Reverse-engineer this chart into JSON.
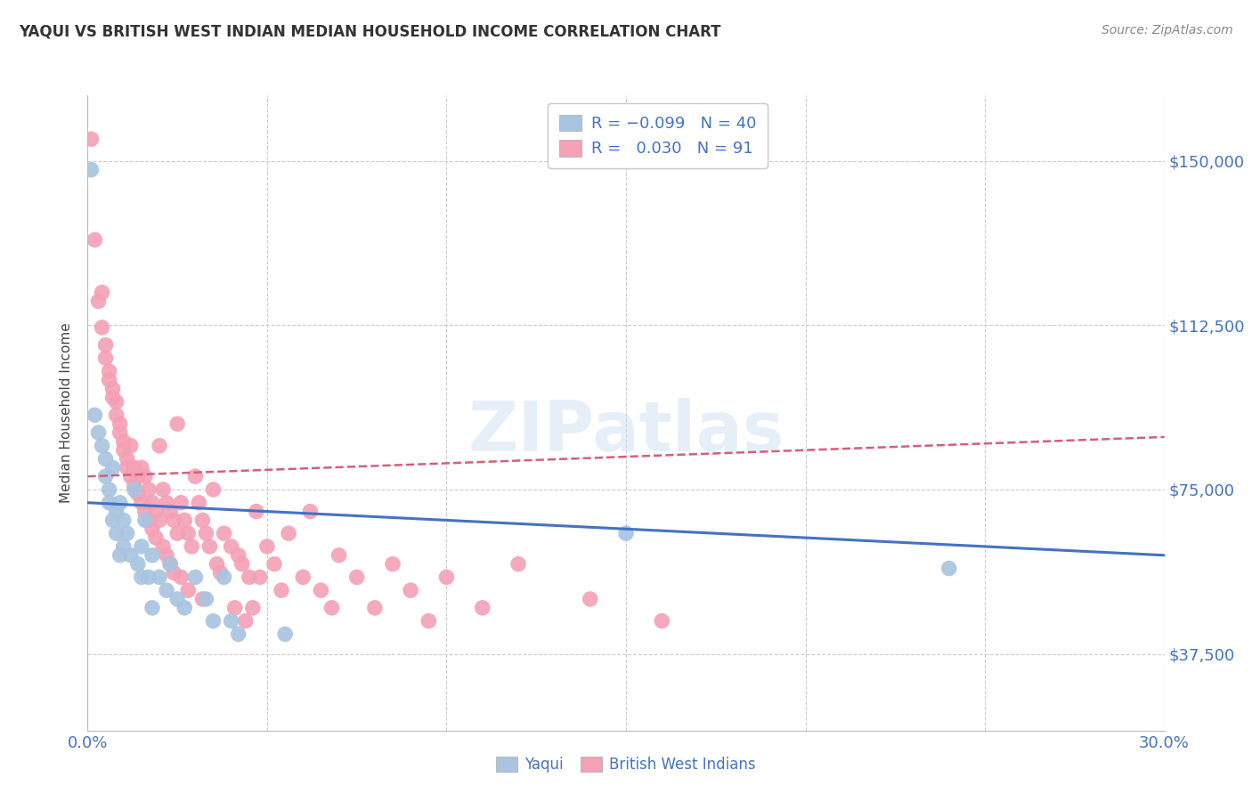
{
  "title": "YAQUI VS BRITISH WEST INDIAN MEDIAN HOUSEHOLD INCOME CORRELATION CHART",
  "source": "Source: ZipAtlas.com",
  "ylabel": "Median Household Income",
  "y_ticks": [
    37500,
    75000,
    112500,
    150000
  ],
  "y_tick_labels": [
    "$37,500",
    "$75,000",
    "$112,500",
    "$150,000"
  ],
  "y_min": 20000,
  "y_max": 165000,
  "x_min": 0.0,
  "x_max": 0.3,
  "watermark": "ZIPatlas",
  "blue_color": "#a8c4e0",
  "pink_color": "#f4a0b5",
  "blue_line_color": "#4472c4",
  "pink_line_color": "#d45f7a",
  "blue_scatter": [
    [
      0.001,
      148000
    ],
    [
      0.002,
      92000
    ],
    [
      0.003,
      88000
    ],
    [
      0.004,
      85000
    ],
    [
      0.005,
      82000
    ],
    [
      0.005,
      78000
    ],
    [
      0.006,
      75000
    ],
    [
      0.006,
      72000
    ],
    [
      0.007,
      80000
    ],
    [
      0.007,
      68000
    ],
    [
      0.008,
      70000
    ],
    [
      0.008,
      65000
    ],
    [
      0.009,
      72000
    ],
    [
      0.009,
      60000
    ],
    [
      0.01,
      68000
    ],
    [
      0.01,
      62000
    ],
    [
      0.011,
      65000
    ],
    [
      0.012,
      60000
    ],
    [
      0.013,
      75000
    ],
    [
      0.014,
      58000
    ],
    [
      0.015,
      62000
    ],
    [
      0.015,
      55000
    ],
    [
      0.016,
      68000
    ],
    [
      0.017,
      55000
    ],
    [
      0.018,
      60000
    ],
    [
      0.018,
      48000
    ],
    [
      0.02,
      55000
    ],
    [
      0.022,
      52000
    ],
    [
      0.023,
      58000
    ],
    [
      0.025,
      50000
    ],
    [
      0.027,
      48000
    ],
    [
      0.03,
      55000
    ],
    [
      0.033,
      50000
    ],
    [
      0.035,
      45000
    ],
    [
      0.038,
      55000
    ],
    [
      0.04,
      45000
    ],
    [
      0.042,
      42000
    ],
    [
      0.055,
      42000
    ],
    [
      0.15,
      65000
    ],
    [
      0.24,
      57000
    ]
  ],
  "pink_scatter": [
    [
      0.001,
      155000
    ],
    [
      0.002,
      132000
    ],
    [
      0.003,
      118000
    ],
    [
      0.004,
      120000
    ],
    [
      0.004,
      112000
    ],
    [
      0.005,
      108000
    ],
    [
      0.005,
      105000
    ],
    [
      0.006,
      102000
    ],
    [
      0.006,
      100000
    ],
    [
      0.007,
      98000
    ],
    [
      0.007,
      96000
    ],
    [
      0.008,
      95000
    ],
    [
      0.008,
      92000
    ],
    [
      0.009,
      90000
    ],
    [
      0.009,
      88000
    ],
    [
      0.01,
      86000
    ],
    [
      0.01,
      84000
    ],
    [
      0.011,
      82000
    ],
    [
      0.011,
      80000
    ],
    [
      0.012,
      85000
    ],
    [
      0.012,
      78000
    ],
    [
      0.013,
      80000
    ],
    [
      0.013,
      76000
    ],
    [
      0.014,
      78000
    ],
    [
      0.014,
      74000
    ],
    [
      0.015,
      80000
    ],
    [
      0.015,
      72000
    ],
    [
      0.016,
      78000
    ],
    [
      0.016,
      70000
    ],
    [
      0.017,
      75000
    ],
    [
      0.017,
      68000
    ],
    [
      0.018,
      72000
    ],
    [
      0.018,
      66000
    ],
    [
      0.019,
      70000
    ],
    [
      0.019,
      64000
    ],
    [
      0.02,
      85000
    ],
    [
      0.02,
      68000
    ],
    [
      0.021,
      75000
    ],
    [
      0.021,
      62000
    ],
    [
      0.022,
      72000
    ],
    [
      0.022,
      60000
    ],
    [
      0.023,
      70000
    ],
    [
      0.023,
      58000
    ],
    [
      0.024,
      68000
    ],
    [
      0.024,
      56000
    ],
    [
      0.025,
      90000
    ],
    [
      0.025,
      65000
    ],
    [
      0.026,
      72000
    ],
    [
      0.026,
      55000
    ],
    [
      0.027,
      68000
    ],
    [
      0.028,
      65000
    ],
    [
      0.028,
      52000
    ],
    [
      0.029,
      62000
    ],
    [
      0.03,
      78000
    ],
    [
      0.031,
      72000
    ],
    [
      0.032,
      68000
    ],
    [
      0.032,
      50000
    ],
    [
      0.033,
      65000
    ],
    [
      0.034,
      62000
    ],
    [
      0.035,
      75000
    ],
    [
      0.036,
      58000
    ],
    [
      0.037,
      56000
    ],
    [
      0.038,
      65000
    ],
    [
      0.04,
      62000
    ],
    [
      0.041,
      48000
    ],
    [
      0.042,
      60000
    ],
    [
      0.043,
      58000
    ],
    [
      0.044,
      45000
    ],
    [
      0.045,
      55000
    ],
    [
      0.046,
      48000
    ],
    [
      0.047,
      70000
    ],
    [
      0.048,
      55000
    ],
    [
      0.05,
      62000
    ],
    [
      0.052,
      58000
    ],
    [
      0.054,
      52000
    ],
    [
      0.056,
      65000
    ],
    [
      0.06,
      55000
    ],
    [
      0.062,
      70000
    ],
    [
      0.065,
      52000
    ],
    [
      0.068,
      48000
    ],
    [
      0.07,
      60000
    ],
    [
      0.075,
      55000
    ],
    [
      0.08,
      48000
    ],
    [
      0.085,
      58000
    ],
    [
      0.09,
      52000
    ],
    [
      0.095,
      45000
    ],
    [
      0.1,
      55000
    ],
    [
      0.11,
      48000
    ],
    [
      0.12,
      58000
    ],
    [
      0.14,
      50000
    ],
    [
      0.16,
      45000
    ]
  ],
  "blue_line_x": [
    0.0,
    0.3
  ],
  "blue_line_y": [
    72000,
    60000
  ],
  "pink_line_x": [
    0.0,
    0.3
  ],
  "pink_line_y": [
    78000,
    87000
  ]
}
